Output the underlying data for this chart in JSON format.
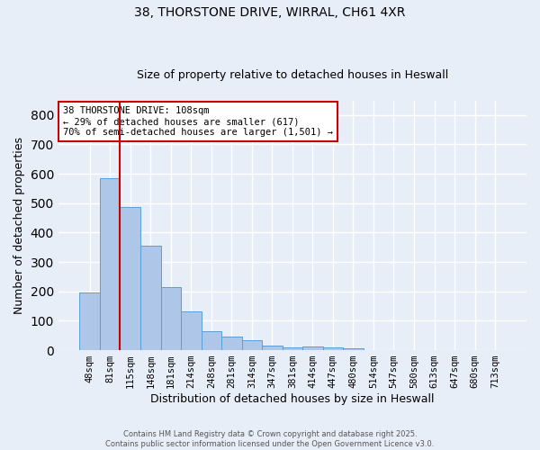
{
  "title_line1": "38, THORSTONE DRIVE, WIRRAL, CH61 4XR",
  "title_line2": "Size of property relative to detached houses in Heswall",
  "xlabel": "Distribution of detached houses by size in Heswall",
  "ylabel": "Number of detached properties",
  "bar_labels": [
    "48sqm",
    "81sqm",
    "115sqm",
    "148sqm",
    "181sqm",
    "214sqm",
    "248sqm",
    "281sqm",
    "314sqm",
    "347sqm",
    "381sqm",
    "414sqm",
    "447sqm",
    "480sqm",
    "514sqm",
    "547sqm",
    "580sqm",
    "613sqm",
    "647sqm",
    "680sqm",
    "713sqm"
  ],
  "bar_values": [
    195,
    585,
    487,
    355,
    215,
    133,
    65,
    47,
    35,
    17,
    10,
    11,
    10,
    6,
    0,
    0,
    0,
    0,
    0,
    0,
    0
  ],
  "bar_color": "#aec6e8",
  "bar_edge_color": "#5a9fd4",
  "background_color": "#e8eef8",
  "grid_color": "#ffffff",
  "vline_index": 1.5,
  "vline_color": "#cc0000",
  "annotation_text": "38 THORSTONE DRIVE: 108sqm\n← 29% of detached houses are smaller (617)\n70% of semi-detached houses are larger (1,501) →",
  "annotation_box_color": "#ffffff",
  "annotation_box_edge": "#cc0000",
  "ylim": [
    0,
    850
  ],
  "yticks": [
    0,
    100,
    200,
    300,
    400,
    500,
    600,
    700,
    800
  ],
  "footer_line1": "Contains HM Land Registry data © Crown copyright and database right 2025.",
  "footer_line2": "Contains public sector information licensed under the Open Government Licence v3.0."
}
